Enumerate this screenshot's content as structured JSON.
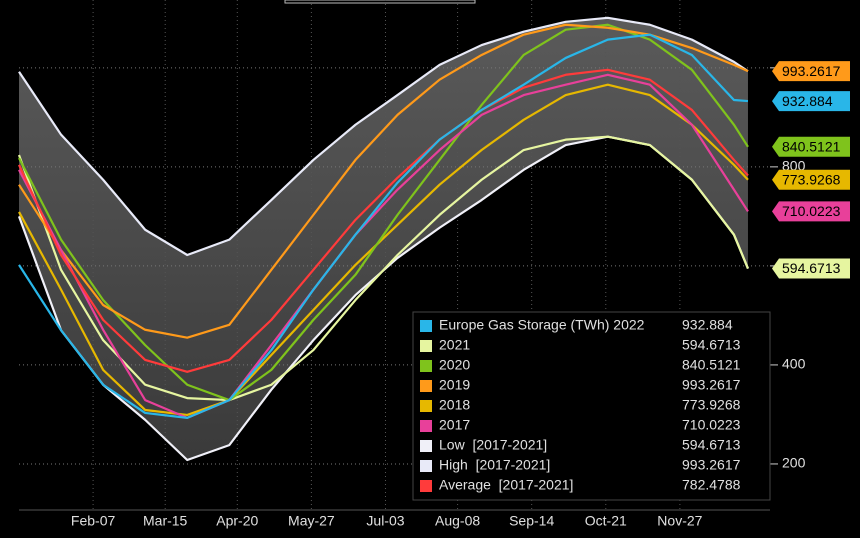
{
  "chart_data": {
    "type": "line",
    "x": [
      1,
      22,
      43,
      64,
      85,
      106,
      127,
      148,
      169,
      190,
      211,
      232,
      253,
      274,
      295,
      316,
      337,
      358,
      365
    ],
    "xlim": [
      1,
      376
    ],
    "xticks": [
      {
        "value": 38,
        "label": "Feb-07"
      },
      {
        "value": 74,
        "label": "Mar-15"
      },
      {
        "value": 110,
        "label": "Apr-20"
      },
      {
        "value": 147,
        "label": "May-27"
      },
      {
        "value": 184,
        "label": "Jul-03"
      },
      {
        "value": 220,
        "label": "Aug-08"
      },
      {
        "value": 257,
        "label": "Sep-14"
      },
      {
        "value": 294,
        "label": "Oct-21"
      },
      {
        "value": 331,
        "label": "Nov-27"
      }
    ],
    "ylim": [
      107,
      1137
    ],
    "yticks": [
      200,
      400,
      600,
      800,
      1000
    ],
    "grid": true,
    "series": [
      {
        "name": "Europe Gas Storage (TWh) 2022",
        "color": "#29b6e8",
        "values": [
          602,
          470,
          360,
          303,
          293,
          329,
          430,
          552,
          663,
          768,
          855,
          915,
          966,
          1020,
          1057,
          1067,
          1026,
          935,
          932.884
        ]
      },
      {
        "name": "2021",
        "color": "#e6f5a0",
        "values": [
          824,
          592,
          450,
          360,
          333,
          329,
          360,
          430,
          531,
          622,
          703,
          774,
          834,
          855,
          861,
          844,
          774,
          663,
          594.6713
        ]
      },
      {
        "name": "2020",
        "color": "#7fc31c",
        "values": [
          818,
          653,
          531,
          440,
          360,
          329,
          390,
          491,
          582,
          703,
          814,
          925,
          1026,
          1077,
          1087,
          1057,
          996,
          885,
          840.5121
        ]
      },
      {
        "name": "2019",
        "color": "#ff9a1a",
        "values": [
          764,
          632,
          521,
          471,
          455,
          481,
          592,
          703,
          814,
          905,
          976,
          1026,
          1067,
          1087,
          1081,
          1067,
          1040,
          1006,
          993.2617
        ]
      },
      {
        "name": "2018",
        "color": "#e6b800",
        "values": [
          709,
          552,
          390,
          309,
          299,
          329,
          420,
          511,
          602,
          683,
          764,
          834,
          895,
          945,
          966,
          945,
          885,
          804,
          773.9268
        ]
      },
      {
        "name": "2017",
        "color": "#e8409a",
        "values": [
          794,
          632,
          471,
          329,
          293,
          329,
          440,
          552,
          663,
          754,
          834,
          905,
          945,
          966,
          986,
          966,
          885,
          754,
          710.0223
        ]
      },
      {
        "name": "Low  [2017-2021]",
        "color": "#f0f0f8",
        "values": [
          700,
          470,
          360,
          289,
          208,
          238,
          350,
          450,
          541,
          616,
          677,
          733,
          794,
          844,
          861,
          844,
          774,
          663,
          594.6713
        ]
      },
      {
        "name": "High  [2017-2021]",
        "color": "#e8eaf8",
        "values": [
          992,
          865,
          774,
          673,
          622,
          653,
          733,
          814,
          885,
          945,
          1006,
          1046,
          1073,
          1093,
          1101,
          1087,
          1057,
          1012,
          993.2617
        ]
      },
      {
        "name": "Average  [2017-2021]",
        "color": "#ff3b3b",
        "values": [
          804,
          622,
          491,
          410,
          386,
          410,
          491,
          592,
          693,
          778,
          855,
          915,
          960,
          986,
          996,
          976,
          915,
          814,
          782.4788
        ]
      }
    ]
  }
}
